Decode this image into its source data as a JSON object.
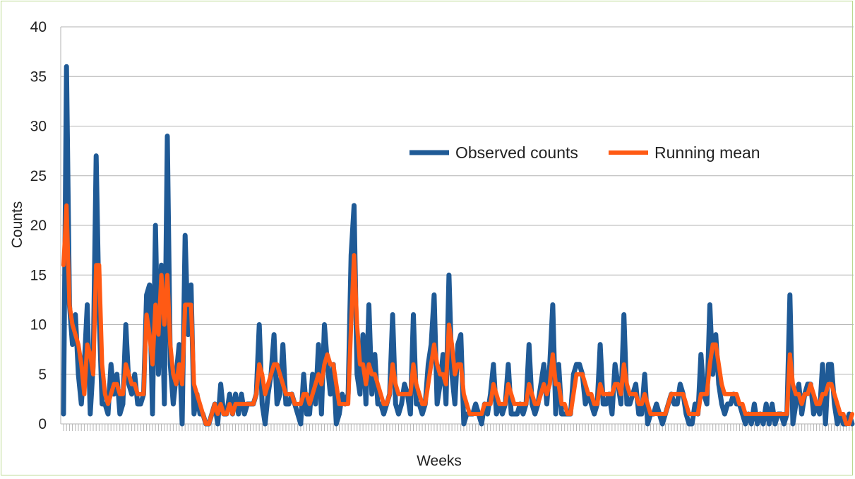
{
  "chart_data": {
    "type": "line",
    "xlabel": "Weeks",
    "ylabel": "Counts",
    "ylim": [
      0,
      40
    ],
    "yticks": [
      "0",
      "5",
      "10",
      "15",
      "20",
      "25",
      "30",
      "35",
      "40"
    ],
    "grid": true,
    "legend": "upper-right",
    "series": [
      {
        "name": "Observed counts",
        "color": "#1f5a96",
        "values": [
          1,
          36,
          12,
          8,
          11,
          5,
          2,
          6,
          12,
          1,
          6,
          27,
          11,
          2,
          2,
          1,
          6,
          3,
          5,
          1,
          2,
          10,
          4,
          3,
          5,
          2,
          2,
          3,
          13,
          14,
          1,
          20,
          5,
          16,
          2,
          29,
          6,
          2,
          5,
          8,
          0,
          19,
          9,
          14,
          1,
          3,
          1,
          1,
          0,
          0,
          1,
          2,
          0,
          4,
          1,
          1,
          3,
          1,
          3,
          1,
          3,
          1,
          2,
          2,
          2,
          3,
          10,
          2,
          0,
          3,
          5,
          9,
          2,
          3,
          8,
          2,
          2,
          3,
          2,
          1,
          0,
          5,
          1,
          1,
          5,
          2,
          8,
          1,
          10,
          6,
          3,
          6,
          0,
          1,
          3,
          2,
          3,
          17,
          22,
          5,
          3,
          9,
          2,
          12,
          3,
          7,
          2,
          2,
          1,
          2,
          3,
          11,
          2,
          1,
          2,
          4,
          3,
          1,
          11,
          2,
          2,
          1,
          2,
          6,
          8,
          13,
          2,
          4,
          7,
          2,
          15,
          5,
          2,
          8,
          9,
          0,
          1,
          1,
          1,
          2,
          1,
          0,
          2,
          1,
          3,
          6,
          1,
          2,
          1,
          2,
          6,
          1,
          1,
          1,
          2,
          1,
          2,
          8,
          2,
          1,
          2,
          4,
          6,
          2,
          6,
          12,
          1,
          6,
          1,
          1,
          1,
          1,
          5,
          6,
          6,
          5,
          2,
          3,
          2,
          1,
          2,
          8,
          2,
          2,
          3,
          1,
          6,
          4,
          2,
          11,
          2,
          2,
          3,
          4,
          1,
          1,
          5,
          0,
          1,
          1,
          2,
          1,
          0,
          1,
          2,
          3,
          2,
          2,
          4,
          3,
          1,
          0,
          0,
          2,
          1,
          7,
          3,
          2,
          12,
          5,
          9,
          4,
          2,
          1,
          2,
          2,
          3,
          2,
          2,
          1,
          0,
          1,
          0,
          2,
          0,
          1,
          0,
          2,
          0,
          2,
          0,
          1,
          1,
          0,
          1,
          13,
          0,
          2,
          4,
          1,
          3,
          4,
          4,
          1,
          2,
          1,
          6,
          0,
          6,
          6,
          2,
          0,
          1,
          0,
          0,
          1,
          0
        ],
        "line_width": 7
      },
      {
        "name": "Running mean",
        "color": "#ff5a14",
        "values": [
          16,
          22,
          12,
          10,
          9,
          8,
          6,
          3,
          8,
          7,
          5,
          16,
          16,
          6,
          3,
          2,
          3,
          4,
          4,
          3,
          3,
          6,
          5,
          4,
          4,
          3,
          3,
          3,
          11,
          9,
          6,
          12,
          9,
          15,
          10,
          15,
          8,
          5,
          4,
          6,
          4,
          12,
          12,
          12,
          4,
          3,
          2,
          1,
          0,
          0,
          1,
          2,
          1,
          2,
          1,
          1,
          2,
          1,
          2,
          2,
          2,
          2,
          2,
          2,
          2,
          3,
          6,
          5,
          3,
          4,
          5,
          6,
          6,
          5,
          4,
          3,
          3,
          3,
          2,
          2,
          2,
          3,
          3,
          2,
          3,
          4,
          5,
          4,
          6,
          7,
          6,
          6,
          4,
          2,
          2,
          2,
          2,
          10,
          17,
          10,
          6,
          6,
          4,
          6,
          5,
          5,
          4,
          3,
          2,
          2,
          3,
          6,
          4,
          3,
          3,
          3,
          3,
          3,
          6,
          4,
          3,
          2,
          2,
          4,
          6,
          8,
          6,
          5,
          5,
          4,
          10,
          8,
          5,
          6,
          6,
          3,
          2,
          1,
          1,
          1,
          1,
          1,
          2,
          2,
          2,
          4,
          3,
          2,
          2,
          2,
          4,
          3,
          2,
          2,
          2,
          2,
          2,
          4,
          3,
          2,
          2,
          3,
          4,
          3,
          4,
          7,
          4,
          4,
          2,
          2,
          1,
          1,
          3,
          5,
          5,
          5,
          4,
          3,
          3,
          2,
          2,
          4,
          3,
          3,
          3,
          3,
          4,
          4,
          3,
          6,
          4,
          3,
          3,
          3,
          2,
          2,
          3,
          2,
          1,
          1,
          1,
          1,
          1,
          1,
          2,
          3,
          3,
          3,
          3,
          3,
          2,
          1,
          1,
          1,
          1,
          3,
          3,
          3,
          6,
          8,
          8,
          6,
          4,
          3,
          3,
          3,
          3,
          3,
          2,
          2,
          1,
          1,
          1,
          1,
          1,
          1,
          1,
          1,
          1,
          1,
          1,
          1,
          1,
          1,
          1,
          7,
          4,
          3,
          3,
          2,
          3,
          3,
          4,
          3,
          2,
          2,
          3,
          3,
          4,
          4,
          3,
          2,
          1,
          1,
          0,
          0,
          1
        ],
        "line_width": 6
      }
    ]
  }
}
